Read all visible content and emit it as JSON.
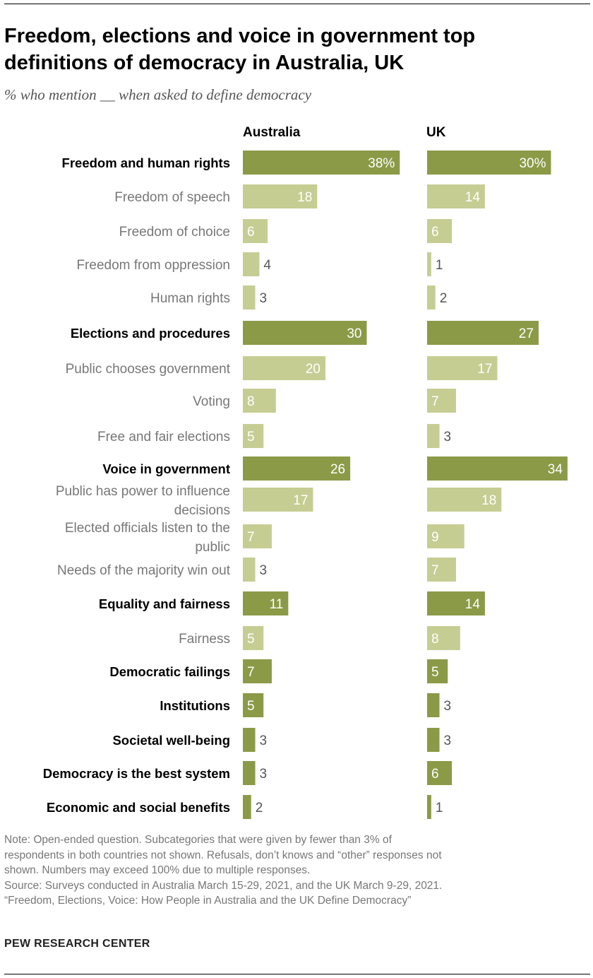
{
  "header": {
    "title": "Freedom, elections and voice in government top definitions of democracy in Australia, UK",
    "subtitle": "% who mention __ when asked to define democracy"
  },
  "colors": {
    "main_bar": "#8b9a47",
    "sub_bar": "#c6cd93",
    "bar_text": "#ffffff",
    "outside_text": "#555555",
    "sub_label": "#777777"
  },
  "chart_data": {
    "type": "bar",
    "orientation": "horizontal",
    "columns": [
      "Australia",
      "UK"
    ],
    "rows": [
      {
        "label": [
          "Freedom and human rights"
        ],
        "level": "main",
        "australia": 38,
        "uk": 30,
        "australia_label": "38%",
        "uk_label": "30%"
      },
      {
        "label": [
          "Freedom of speech"
        ],
        "level": "sub",
        "australia": 18,
        "uk": 14,
        "australia_label": "18",
        "uk_label": "14"
      },
      {
        "label": [
          "Freedom of choice"
        ],
        "level": "sub",
        "australia": 6,
        "uk": 6,
        "australia_label": "6",
        "uk_label": "6"
      },
      {
        "label": [
          "Freedom from oppression"
        ],
        "level": "sub",
        "australia": 4,
        "uk": 1,
        "australia_label": "4",
        "uk_label": "1"
      },
      {
        "label": [
          "Human rights"
        ],
        "level": "sub",
        "australia": 3,
        "uk": 2,
        "australia_label": "3",
        "uk_label": "2"
      },
      {
        "label": [
          "Elections and procedures"
        ],
        "level": "main",
        "australia": 30,
        "uk": 27,
        "australia_label": "30",
        "uk_label": "27"
      },
      {
        "label": [
          "Public chooses government"
        ],
        "level": "sub",
        "australia": 20,
        "uk": 17,
        "australia_label": "20",
        "uk_label": "17"
      },
      {
        "label": [
          "Voting"
        ],
        "level": "sub",
        "australia": 8,
        "uk": 7,
        "australia_label": "8",
        "uk_label": "7"
      },
      {
        "label": [
          "Free and fair elections"
        ],
        "level": "sub",
        "australia": 5,
        "uk": 3,
        "australia_label": "5",
        "uk_label": "3"
      },
      {
        "label": [
          "Voice in government"
        ],
        "level": "main",
        "australia": 26,
        "uk": 34,
        "australia_label": "26",
        "uk_label": "34"
      },
      {
        "label": [
          "Public has power to influence",
          "decisions"
        ],
        "level": "sub",
        "australia": 17,
        "uk": 18,
        "australia_label": "17",
        "uk_label": "18"
      },
      {
        "label": [
          "Elected officials listen to the",
          "public"
        ],
        "level": "sub",
        "australia": 7,
        "uk": 9,
        "australia_label": "7",
        "uk_label": "9"
      },
      {
        "label": [
          "Needs of the majority win out"
        ],
        "level": "sub",
        "australia": 3,
        "uk": 7,
        "australia_label": "3",
        "uk_label": "7"
      },
      {
        "label": [
          "Equality and fairness"
        ],
        "level": "main",
        "australia": 11,
        "uk": 14,
        "australia_label": "11",
        "uk_label": "14"
      },
      {
        "label": [
          "Fairness"
        ],
        "level": "sub",
        "australia": 5,
        "uk": 8,
        "australia_label": "5",
        "uk_label": "8"
      },
      {
        "label": [
          "Democratic failings"
        ],
        "level": "main",
        "australia": 7,
        "uk": 5,
        "australia_label": "7",
        "uk_label": "5"
      },
      {
        "label": [
          "Institutions"
        ],
        "level": "main",
        "australia": 5,
        "uk": 3,
        "australia_label": "5",
        "uk_label": "3"
      },
      {
        "label": [
          "Societal well-being"
        ],
        "level": "main",
        "australia": 3,
        "uk": 3,
        "australia_label": "3",
        "uk_label": "3"
      },
      {
        "label": [
          "Democracy is the best system"
        ],
        "level": "main",
        "australia": 3,
        "uk": 6,
        "australia_label": "3",
        "uk_label": "6"
      },
      {
        "label": [
          "Economic and social benefits"
        ],
        "level": "main",
        "australia": 2,
        "uk": 1,
        "australia_label": "2",
        "uk_label": "1"
      }
    ]
  },
  "notes": {
    "note_lines": [
      "Note: Open-ended question. Subcategories that were given by fewer than 3% of",
      "respondents in both countries not shown. Refusals, don’t knows and “other” responses not",
      "shown. Numbers may exceed 100% due to multiple responses."
    ],
    "source": "Source: Surveys conducted in Australia March 15-29, 2021, and the UK March 9-29, 2021.",
    "report": "“Freedom, Elections, Voice: How People in Australia and the UK Define Democracy”"
  },
  "footer": {
    "brand": "PEW RESEARCH CENTER"
  }
}
